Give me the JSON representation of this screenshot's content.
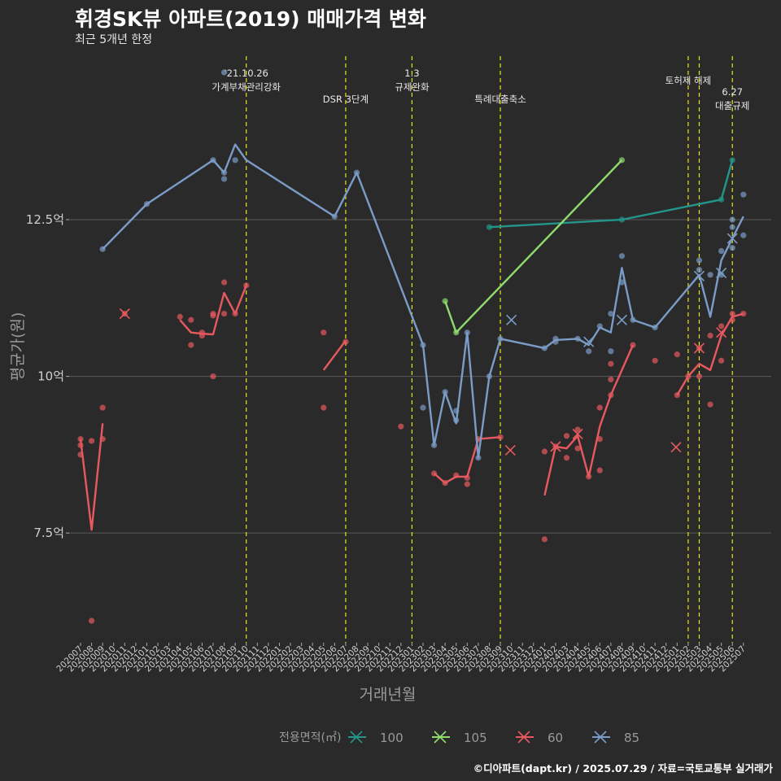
{
  "title": "휘경SK뷰 아파트(2019) 매매가격 변화",
  "subtitle": "최근 5개년 한정",
  "caption": "©디아파트(dapt.kr) / 2025.07.29 / 자료=국토교통부 실거래가",
  "chart_data": {
    "type": "line",
    "xlabel": "거래년월",
    "ylabel": "평균가(원)",
    "ylim": [
      5.75,
      15.2
    ],
    "yticks": [
      {
        "v": 7.5,
        "label": "7.5억"
      },
      {
        "v": 10,
        "label": "10억"
      },
      {
        "v": 12.5,
        "label": "12.5억"
      }
    ],
    "x_categories": [
      "202007",
      "202008",
      "202009",
      "202010",
      "202011",
      "202012",
      "202101",
      "202102",
      "202103",
      "202104",
      "202105",
      "202106",
      "202107",
      "202108",
      "202109",
      "202110",
      "202111",
      "202112",
      "202201",
      "202202",
      "202203",
      "202204",
      "202205",
      "202206",
      "202207",
      "202208",
      "202209",
      "202210",
      "202211",
      "202212",
      "202301",
      "202302",
      "202303",
      "202304",
      "202305",
      "202306",
      "202307",
      "202308",
      "202309",
      "202310",
      "202311",
      "202312",
      "202401",
      "202402",
      "202403",
      "202404",
      "202405",
      "202406",
      "202407",
      "202408",
      "202409",
      "202410",
      "202411",
      "202412",
      "202501",
      "202502",
      "202503",
      "202504",
      "202505",
      "202506",
      "202507"
    ],
    "legend_title": "전용면적(㎡)",
    "legend_position": "bottom",
    "grid": true,
    "events": [
      {
        "x": 15,
        "label": "'21.10.26\n가계부채관리강화",
        "row": 0
      },
      {
        "x": 24,
        "label": "DSR 3단계",
        "row": 1
      },
      {
        "x": 30,
        "label": "1.3\n규제완화",
        "row": 0
      },
      {
        "x": 38,
        "label": "특례대출축소",
        "row": 1
      },
      {
        "x": 55,
        "label": "토허제 해제",
        "row": 0
      },
      {
        "x": 56,
        "label": "",
        "row": 0
      },
      {
        "x": 59,
        "label": "6.27\n대출규제",
        "row": 2
      }
    ],
    "series": [
      {
        "name": "100",
        "color": "#23958a",
        "line": [
          [
            37,
            12.38
          ],
          [
            49,
            12.5
          ],
          [
            58,
            12.82
          ],
          [
            59,
            13.45
          ]
        ],
        "points": [
          [
            37,
            12.38
          ],
          [
            49,
            12.5
          ],
          [
            58,
            12.82
          ],
          [
            59,
            13.45
          ]
        ],
        "crosses": []
      },
      {
        "name": "105",
        "color": "#8fdc6e",
        "line": [
          [
            33,
            11.2
          ],
          [
            34,
            10.7
          ],
          [
            49,
            13.45
          ]
        ],
        "points": [
          [
            33,
            11.2
          ],
          [
            34,
            10.7
          ],
          [
            49,
            13.45
          ]
        ],
        "crosses": []
      },
      {
        "name": "60",
        "color": "#e8595f",
        "line": [
          [
            0,
            9.0
          ],
          [
            1,
            7.55
          ],
          [
            2,
            9.25
          ]
        ],
        "line_segments": [
          [
            [
              0,
              9.0
            ],
            [
              1,
              7.55
            ],
            [
              2,
              9.25
            ]
          ],
          [
            [
              9,
              10.9
            ],
            [
              10,
              10.7
            ],
            [
              11,
              10.68
            ],
            [
              12,
              10.67
            ],
            [
              13,
              11.33
            ],
            [
              14,
              11.0
            ],
            [
              15,
              11.45
            ]
          ],
          [
            [
              22,
              10.1
            ],
            [
              24,
              10.57
            ]
          ],
          [
            [
              32,
              8.45
            ],
            [
              33,
              8.3
            ],
            [
              34,
              8.4
            ],
            [
              35,
              8.4
            ],
            [
              36,
              9.0
            ],
            [
              38,
              9.03
            ]
          ],
          [
            [
              42,
              8.1
            ],
            [
              43,
              8.88
            ],
            [
              44,
              8.85
            ],
            [
              45,
              9.05
            ],
            [
              46,
              8.4
            ],
            [
              47,
              9.2
            ],
            [
              48,
              9.7
            ],
            [
              50,
              10.5
            ]
          ],
          [
            [
              54,
              9.7
            ],
            [
              55,
              10.0
            ],
            [
              56,
              10.2
            ],
            [
              57,
              10.1
            ],
            [
              58,
              10.65
            ],
            [
              59,
              10.95
            ],
            [
              60,
              11.0
            ]
          ]
        ],
        "points": [
          [
            0,
            9.0
          ],
          [
            0,
            8.9
          ],
          [
            0,
            8.75
          ],
          [
            1,
            8.97
          ],
          [
            1,
            6.1
          ],
          [
            2,
            9.0
          ],
          [
            2,
            9.5
          ],
          [
            4,
            11.0
          ],
          [
            9,
            10.95
          ],
          [
            10,
            10.9
          ],
          [
            10,
            10.5
          ],
          [
            11,
            10.7
          ],
          [
            11,
            10.65
          ],
          [
            12,
            11.0
          ],
          [
            12,
            10.97
          ],
          [
            12,
            10.0
          ],
          [
            13,
            11.5
          ],
          [
            13,
            11.0
          ],
          [
            14,
            11.0
          ],
          [
            15,
            11.45
          ],
          [
            22,
            10.7
          ],
          [
            22,
            9.5
          ],
          [
            24,
            10.55
          ],
          [
            29,
            9.2
          ],
          [
            32,
            8.45
          ],
          [
            33,
            8.3
          ],
          [
            34,
            8.42
          ],
          [
            35,
            8.38
          ],
          [
            35,
            8.28
          ],
          [
            36,
            9.0
          ],
          [
            38,
            9.03
          ],
          [
            42,
            7.4
          ],
          [
            42,
            8.8
          ],
          [
            43,
            8.88
          ],
          [
            44,
            9.05
          ],
          [
            44,
            8.7
          ],
          [
            45,
            9.15
          ],
          [
            45,
            8.85
          ],
          [
            46,
            8.4
          ],
          [
            47,
            9.5
          ],
          [
            47,
            9.0
          ],
          [
            47,
            8.5
          ],
          [
            48,
            10.2
          ],
          [
            48,
            9.95
          ],
          [
            48,
            9.7
          ],
          [
            50,
            10.5
          ],
          [
            52,
            10.25
          ],
          [
            54,
            10.35
          ],
          [
            54,
            9.7
          ],
          [
            55,
            10.0
          ],
          [
            56,
            10.0
          ],
          [
            56,
            10.45
          ],
          [
            57,
            10.65
          ],
          [
            57,
            9.55
          ],
          [
            58,
            10.8
          ],
          [
            58,
            10.25
          ],
          [
            59,
            11.0
          ],
          [
            59,
            10.9
          ],
          [
            60,
            11.0
          ]
        ],
        "crosses": [
          [
            4,
            11.0
          ],
          [
            38.9,
            8.82
          ],
          [
            43,
            8.88
          ],
          [
            45,
            9.08
          ],
          [
            53.9,
            8.87
          ],
          [
            56,
            10.45
          ],
          [
            58,
            10.7
          ]
        ]
      },
      {
        "name": "85",
        "color": "#7a9cc6",
        "line_segments": [
          [
            [
              2,
              12.03
            ],
            [
              6,
              12.75
            ],
            [
              12,
              13.45
            ],
            [
              13,
              13.25
            ],
            [
              14,
              13.7
            ],
            [
              15,
              13.45
            ],
            [
              23,
              12.55
            ],
            [
              25,
              13.25
            ],
            [
              31,
              10.5
            ],
            [
              32,
              8.9
            ],
            [
              33,
              9.75
            ],
            [
              34,
              9.25
            ],
            [
              35,
              10.7
            ],
            [
              36,
              8.7
            ],
            [
              37,
              10.0
            ],
            [
              38,
              10.6
            ],
            [
              42,
              10.45
            ],
            [
              43,
              10.58
            ],
            [
              45,
              10.6
            ],
            [
              46,
              10.5
            ],
            [
              47,
              10.78
            ],
            [
              48,
              10.7
            ],
            [
              49,
              11.73
            ],
            [
              50,
              10.9
            ],
            [
              52,
              10.78
            ],
            [
              56,
              11.62
            ],
            [
              57,
              10.95
            ],
            [
              58,
              11.85
            ],
            [
              59,
              12.2
            ],
            [
              60,
              12.55
            ]
          ]
        ],
        "points": [
          [
            2,
            12.03
          ],
          [
            6,
            12.75
          ],
          [
            12,
            13.45
          ],
          [
            13,
            13.25
          ],
          [
            13,
            13.15
          ],
          [
            13,
            14.85
          ],
          [
            14,
            13.45
          ],
          [
            23,
            12.55
          ],
          [
            25,
            13.25
          ],
          [
            31,
            10.5
          ],
          [
            31,
            9.5
          ],
          [
            32,
            8.9
          ],
          [
            33,
            9.75
          ],
          [
            34,
            9.45
          ],
          [
            34,
            9.3
          ],
          [
            35,
            10.7
          ],
          [
            36,
            8.7
          ],
          [
            37,
            10.0
          ],
          [
            38,
            10.6
          ],
          [
            42,
            10.45
          ],
          [
            43,
            10.6
          ],
          [
            43,
            10.55
          ],
          [
            45,
            10.6
          ],
          [
            46,
            10.4
          ],
          [
            47,
            10.8
          ],
          [
            48,
            11.0
          ],
          [
            48,
            10.4
          ],
          [
            49,
            11.92
          ],
          [
            49,
            11.5
          ],
          [
            50,
            10.9
          ],
          [
            52,
            10.78
          ],
          [
            56,
            11.85
          ],
          [
            56,
            11.7
          ],
          [
            57,
            11.62
          ],
          [
            58,
            12.0
          ],
          [
            58,
            11.62
          ],
          [
            59,
            12.5
          ],
          [
            59,
            12.38
          ],
          [
            59,
            12.05
          ],
          [
            60,
            12.9
          ],
          [
            60,
            12.25
          ]
        ],
        "crosses": [
          [
            39,
            10.9
          ],
          [
            46,
            10.55
          ],
          [
            49,
            10.9
          ],
          [
            56,
            11.6
          ],
          [
            58,
            11.65
          ],
          [
            59,
            12.2
          ]
        ]
      }
    ]
  }
}
